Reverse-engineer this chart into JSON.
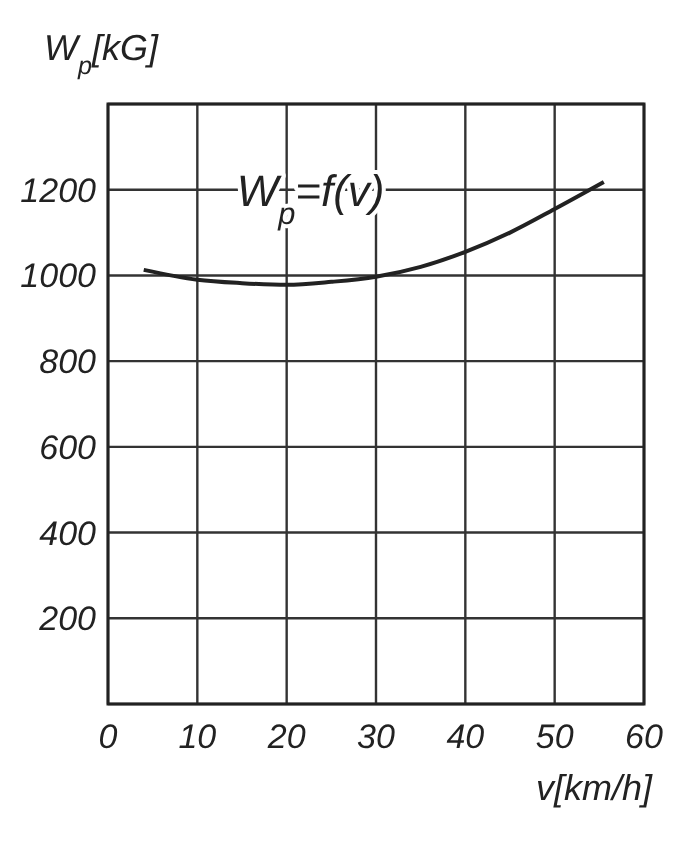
{
  "chart_data": {
    "type": "line",
    "ylabel": "W$_{p}$[kG]",
    "xlabel": "v[km/h]",
    "annotations": [
      "W$_{p}$=f(v)"
    ],
    "x": [
      4,
      10,
      15,
      20,
      25,
      30,
      35,
      40,
      45,
      50,
      55.5
    ],
    "series": [
      {
        "color": "#222222",
        "values": [
          1013,
          990,
          982,
          978,
          985,
          997,
          1020,
          1055,
          1100,
          1155,
          1218
        ]
      }
    ],
    "xlim": [
      0,
      60
    ],
    "xticks": [
      0,
      10,
      20,
      30,
      40,
      50,
      60
    ],
    "ylim": [
      0,
      1400
    ],
    "yticks": [
      {
        "value": 0,
        "label": null
      },
      200,
      400,
      600,
      800,
      1000,
      1200,
      {
        "value": 1400,
        "label": null
      }
    ],
    "grid": true,
    "marker": "none",
    "line_style": "solid"
  }
}
